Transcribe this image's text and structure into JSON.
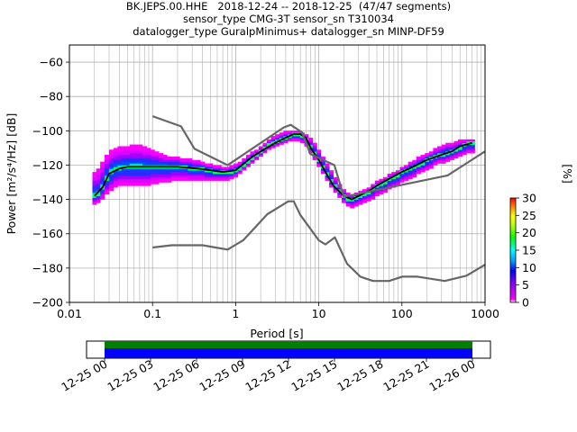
{
  "title_lines": [
    "BK.JEPS.00.HHE   2018-12-24 -- 2018-12-25  (47/47 segments)",
    "sensor_type CMG-3T sensor_sn T310034",
    "datalogger_type GuralpMinimus+ datalogger_sn MINP-DF59"
  ],
  "chart_data": [
    {
      "type": "heatmap",
      "title": "BK.JEPS.00.HHE   2018-12-24 -- 2018-12-25  (47/47 segments)",
      "xlabel": "Period [s]",
      "ylabel": "Power [m²/s⁴/Hz] [dB]",
      "xscale": "log",
      "xlim": [
        0.01,
        1000
      ],
      "ylim": [
        -200,
        -50
      ],
      "xticks": [
        0.01,
        0.1,
        1,
        10,
        100,
        1000
      ],
      "xtick_labels": [
        "0.01",
        "0.1",
        "1",
        "10",
        "100",
        "1000"
      ],
      "yticks": [
        -200,
        -180,
        -160,
        -140,
        -120,
        -100,
        -80,
        -60
      ],
      "ytick_labels": [
        "−200",
        "−180",
        "−160",
        "−140",
        "−120",
        "−100",
        "−80",
        "−60"
      ],
      "grid": true,
      "colorbar": {
        "label": "[%]",
        "range": [
          0,
          30
        ],
        "ticks": [
          0,
          5,
          10,
          15,
          20,
          25,
          30
        ],
        "tick_labels": [
          "0",
          "5",
          "10",
          "15",
          "20",
          "25",
          "30"
        ],
        "colors": [
          "#ffffff",
          "#ff00ff",
          "#0000ff",
          "#00ffff",
          "#00ff00",
          "#ffff00",
          "#ff8000",
          "#ff0000"
        ]
      },
      "series": [
        {
          "name": "mode",
          "color": "#000000",
          "x": [
            0.02,
            0.025,
            0.03,
            0.04,
            0.05,
            0.07,
            0.1,
            0.2,
            0.35,
            0.5,
            0.7,
            1.0,
            1.5,
            2.0,
            3.0,
            4.0,
            5.0,
            6.0,
            7.0,
            8.0,
            10.0,
            12.0,
            15.0,
            20.0,
            25.0,
            30.0,
            40.0,
            50.0,
            70.0,
            100.0,
            150.0,
            200.0,
            300.0,
            400.0,
            500.0,
            700.0
          ],
          "y": [
            -138,
            -133,
            -125,
            -122,
            -121,
            -121,
            -121,
            -121,
            -122,
            -123,
            -124,
            -123,
            -116,
            -112,
            -107,
            -104,
            -102,
            -102,
            -104,
            -110,
            -117,
            -124,
            -132,
            -138,
            -140,
            -138,
            -135,
            -132,
            -128,
            -124,
            -120,
            -117,
            -114,
            -112,
            -109,
            -107
          ]
        },
        {
          "name": "NHNM",
          "color": "#666666",
          "x": [
            0.1,
            0.22,
            0.32,
            0.8,
            3.8,
            4.6,
            6.3,
            7.9,
            15.4,
            20.0,
            354.8,
            1000
          ],
          "y": [
            -91.5,
            -97.4,
            -110.5,
            -120.0,
            -98.0,
            -96.5,
            -101.0,
            -113.5,
            -120.0,
            -138.5,
            -126.0,
            -112.0
          ]
        },
        {
          "name": "NLNM",
          "color": "#666666",
          "x": [
            0.1,
            0.17,
            0.4,
            0.8,
            1.24,
            2.4,
            4.3,
            5.0,
            6.0,
            10.0,
            12.0,
            15.6,
            21.9,
            31.6,
            45.0,
            70.0,
            101.0,
            154.0,
            328.0,
            600.0,
            1000
          ],
          "y": [
            -168.0,
            -166.7,
            -166.7,
            -169.2,
            -163.7,
            -148.6,
            -141.1,
            -141.1,
            -149.0,
            -163.8,
            -166.2,
            -162.1,
            -177.5,
            -185.0,
            -187.5,
            -187.5,
            -185.0,
            -185.0,
            -187.5,
            -184.4,
            -178.0
          ]
        }
      ],
      "heatmap_columns": [
        {
          "x": 0.02,
          "min": -143,
          "max": -124,
          "mode": -138
        },
        {
          "x": 0.022,
          "min": -142,
          "max": -122,
          "mode": -137
        },
        {
          "x": 0.025,
          "min": -140,
          "max": -118,
          "mode": -133
        },
        {
          "x": 0.028,
          "min": -137,
          "max": -114,
          "mode": -128
        },
        {
          "x": 0.032,
          "min": -135,
          "max": -111,
          "mode": -124
        },
        {
          "x": 0.036,
          "min": -133,
          "max": -110,
          "mode": -122
        },
        {
          "x": 0.04,
          "min": -132,
          "max": -109,
          "mode": -122
        },
        {
          "x": 0.045,
          "min": -132,
          "max": -109,
          "mode": -121
        },
        {
          "x": 0.05,
          "min": -132,
          "max": -109,
          "mode": -121
        },
        {
          "x": 0.056,
          "min": -132,
          "max": -108,
          "mode": -121
        },
        {
          "x": 0.063,
          "min": -132,
          "max": -108,
          "mode": -121
        },
        {
          "x": 0.071,
          "min": -132,
          "max": -108,
          "mode": -121
        },
        {
          "x": 0.08,
          "min": -132,
          "max": -109,
          "mode": -121
        },
        {
          "x": 0.09,
          "min": -132,
          "max": -110,
          "mode": -121
        },
        {
          "x": 0.1,
          "min": -131,
          "max": -111,
          "mode": -121
        },
        {
          "x": 0.112,
          "min": -131,
          "max": -112,
          "mode": -121
        },
        {
          "x": 0.126,
          "min": -130,
          "max": -113,
          "mode": -121
        },
        {
          "x": 0.141,
          "min": -130,
          "max": -114,
          "mode": -121
        },
        {
          "x": 0.158,
          "min": -130,
          "max": -115,
          "mode": -121
        },
        {
          "x": 0.178,
          "min": -129,
          "max": -115,
          "mode": -121
        },
        {
          "x": 0.2,
          "min": -129,
          "max": -115,
          "mode": -121
        },
        {
          "x": 0.224,
          "min": -129,
          "max": -116,
          "mode": -121
        },
        {
          "x": 0.251,
          "min": -129,
          "max": -116,
          "mode": -121
        },
        {
          "x": 0.282,
          "min": -129,
          "max": -116,
          "mode": -122
        },
        {
          "x": 0.316,
          "min": -129,
          "max": -117,
          "mode": -122
        },
        {
          "x": 0.355,
          "min": -129,
          "max": -117,
          "mode": -122
        },
        {
          "x": 0.398,
          "min": -129,
          "max": -118,
          "mode": -122
        },
        {
          "x": 0.447,
          "min": -129,
          "max": -119,
          "mode": -123
        },
        {
          "x": 0.5,
          "min": -129,
          "max": -119,
          "mode": -123
        },
        {
          "x": 0.56,
          "min": -129,
          "max": -120,
          "mode": -124
        },
        {
          "x": 0.63,
          "min": -129,
          "max": -120,
          "mode": -124
        },
        {
          "x": 0.71,
          "min": -129,
          "max": -121,
          "mode": -124
        },
        {
          "x": 0.79,
          "min": -129,
          "max": -121,
          "mode": -124
        },
        {
          "x": 0.89,
          "min": -128,
          "max": -120,
          "mode": -124
        },
        {
          "x": 1.0,
          "min": -127,
          "max": -119,
          "mode": -123
        },
        {
          "x": 1.12,
          "min": -125,
          "max": -118,
          "mode": -122
        },
        {
          "x": 1.26,
          "min": -123,
          "max": -116,
          "mode": -120
        },
        {
          "x": 1.41,
          "min": -121,
          "max": -114,
          "mode": -118
        },
        {
          "x": 1.58,
          "min": -119,
          "max": -112,
          "mode": -116
        },
        {
          "x": 1.78,
          "min": -117,
          "max": -111,
          "mode": -114
        },
        {
          "x": 2.0,
          "min": -115,
          "max": -109,
          "mode": -112
        },
        {
          "x": 2.24,
          "min": -113,
          "max": -107,
          "mode": -110
        },
        {
          "x": 2.51,
          "min": -111,
          "max": -105,
          "mode": -108
        },
        {
          "x": 2.82,
          "min": -110,
          "max": -103,
          "mode": -107
        },
        {
          "x": 3.16,
          "min": -109,
          "max": -102,
          "mode": -106
        },
        {
          "x": 3.55,
          "min": -108,
          "max": -101,
          "mode": -105
        },
        {
          "x": 3.98,
          "min": -107,
          "max": -100,
          "mode": -104
        },
        {
          "x": 4.47,
          "min": -106,
          "max": -100,
          "mode": -103
        },
        {
          "x": 5.0,
          "min": -106,
          "max": -100,
          "mode": -102
        },
        {
          "x": 5.62,
          "min": -106,
          "max": -100,
          "mode": -102
        },
        {
          "x": 6.31,
          "min": -107,
          "max": -101,
          "mode": -103
        },
        {
          "x": 7.08,
          "min": -109,
          "max": -102,
          "mode": -105
        },
        {
          "x": 7.94,
          "min": -113,
          "max": -104,
          "mode": -109
        },
        {
          "x": 8.91,
          "min": -117,
          "max": -107,
          "mode": -113
        },
        {
          "x": 10.0,
          "min": -121,
          "max": -111,
          "mode": -117
        },
        {
          "x": 11.2,
          "min": -125,
          "max": -115,
          "mode": -121
        },
        {
          "x": 12.6,
          "min": -129,
          "max": -119,
          "mode": -125
        },
        {
          "x": 14.1,
          "min": -133,
          "max": -123,
          "mode": -129
        },
        {
          "x": 15.8,
          "min": -136,
          "max": -127,
          "mode": -132
        },
        {
          "x": 17.8,
          "min": -139,
          "max": -131,
          "mode": -135
        },
        {
          "x": 20.0,
          "min": -142,
          "max": -134,
          "mode": -138
        },
        {
          "x": 22.4,
          "min": -144,
          "max": -136,
          "mode": -140
        },
        {
          "x": 25.1,
          "min": -145,
          "max": -137,
          "mode": -140
        },
        {
          "x": 28.2,
          "min": -144,
          "max": -136,
          "mode": -139
        },
        {
          "x": 31.6,
          "min": -143,
          "max": -135,
          "mode": -138
        },
        {
          "x": 35.5,
          "min": -142,
          "max": -134,
          "mode": -137
        },
        {
          "x": 39.8,
          "min": -141,
          "max": -133,
          "mode": -136
        },
        {
          "x": 44.7,
          "min": -140,
          "max": -131,
          "mode": -134
        },
        {
          "x": 50.1,
          "min": -138,
          "max": -129,
          "mode": -132
        },
        {
          "x": 56.2,
          "min": -137,
          "max": -128,
          "mode": -131
        },
        {
          "x": 63.1,
          "min": -136,
          "max": -127,
          "mode": -130
        },
        {
          "x": 70.8,
          "min": -134,
          "max": -125,
          "mode": -128
        },
        {
          "x": 79.4,
          "min": -133,
          "max": -124,
          "mode": -127
        },
        {
          "x": 89.1,
          "min": -132,
          "max": -123,
          "mode": -126
        },
        {
          "x": 100,
          "min": -130,
          "max": -121,
          "mode": -124
        },
        {
          "x": 112,
          "min": -129,
          "max": -120,
          "mode": -123
        },
        {
          "x": 126,
          "min": -128,
          "max": -118,
          "mode": -122
        },
        {
          "x": 141,
          "min": -127,
          "max": -117,
          "mode": -121
        },
        {
          "x": 158,
          "min": -125,
          "max": -115,
          "mode": -120
        },
        {
          "x": 178,
          "min": -124,
          "max": -114,
          "mode": -119
        },
        {
          "x": 200,
          "min": -123,
          "max": -113,
          "mode": -117
        },
        {
          "x": 224,
          "min": -122,
          "max": -112,
          "mode": -116
        },
        {
          "x": 251,
          "min": -120,
          "max": -110,
          "mode": -115
        },
        {
          "x": 282,
          "min": -119,
          "max": -109,
          "mode": -114
        },
        {
          "x": 316,
          "min": -119,
          "max": -108,
          "mode": -114
        },
        {
          "x": 355,
          "min": -118,
          "max": -107,
          "mode": -113
        },
        {
          "x": 398,
          "min": -117,
          "max": -107,
          "mode": -112
        },
        {
          "x": 447,
          "min": -116,
          "max": -106,
          "mode": -111
        },
        {
          "x": 501,
          "min": -115,
          "max": -105,
          "mode": -110
        },
        {
          "x": 562,
          "min": -114,
          "max": -105,
          "mode": -108
        },
        {
          "x": 631,
          "min": -113,
          "max": -105,
          "mode": -107
        },
        {
          "x": 708,
          "min": -113,
          "max": -105,
          "mode": -107
        }
      ]
    },
    {
      "type": "bar",
      "title": "",
      "xlabel": "",
      "ylabel": "",
      "description_axis": "time",
      "xtick_labels": [
        "12-25 00",
        "12-25 03",
        "12-25 06",
        "12-25 09",
        "12-25 12",
        "12-25 15",
        "12-25 18",
        "12-25 21",
        "12-26 00"
      ],
      "coverage_start": "12-25 00",
      "coverage_end": "12-26 00",
      "series": [
        {
          "name": "",
          "color": "#008000",
          "values": [
            1
          ]
        },
        {
          "name": "",
          "color": "#0000ff",
          "values": [
            1
          ]
        }
      ]
    }
  ]
}
